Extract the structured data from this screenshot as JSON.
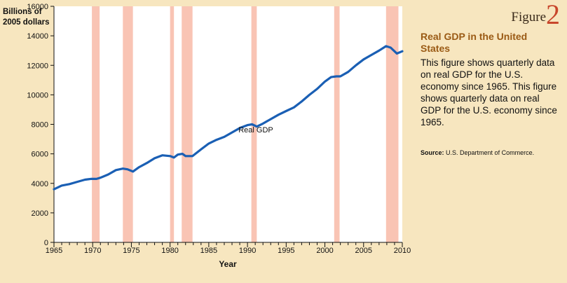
{
  "figure": {
    "word": "Figure",
    "number": "2"
  },
  "panel": {
    "title": "Real GDP in the United States",
    "description": "This figure shows quarterly data on real GDP for the U.S. economy since 1965. This figure shows quarterly data on real GDP for the U.S. economy since 1965.",
    "source_label": "Source:",
    "source_text": "U.S. Department of Commerce."
  },
  "colors": {
    "background": "#f7e6bf",
    "plot_bg": "#ffffff",
    "line": "#1a5fb4",
    "recession": "#f9c4b4",
    "title": "#9a5a14",
    "figure_number": "#c8462b"
  },
  "chart_data": {
    "type": "line",
    "ylabel_lines": [
      "Billions of",
      "2005 dollars"
    ],
    "xlabel": "Year",
    "xlim": [
      1965,
      2010
    ],
    "ylim": [
      0,
      16000
    ],
    "x_ticks": [
      1965,
      1970,
      1975,
      1980,
      1985,
      1990,
      1995,
      2000,
      2005,
      2010
    ],
    "y_ticks": [
      0,
      2000,
      4000,
      6000,
      8000,
      10000,
      12000,
      14000,
      16000
    ],
    "series": [
      {
        "name": "Real GDP",
        "x": [
          1965,
          1966,
          1967,
          1968,
          1969,
          1969.75,
          1970.5,
          1971,
          1972,
          1973,
          1973.9,
          1974.5,
          1975.2,
          1976,
          1977,
          1978,
          1979,
          1980,
          1980.5,
          1981,
          1981.6,
          1982,
          1982.9,
          1984,
          1985,
          1986,
          1987,
          1988,
          1989,
          1990,
          1990.6,
          1991.2,
          1992,
          1993,
          1994,
          1995,
          1996,
          1997,
          1998,
          1999,
          2000,
          2000.8,
          2001.5,
          2002,
          2003,
          2004,
          2005,
          2006,
          2007,
          2007.9,
          2008.5,
          2009.3,
          2010
        ],
        "y": [
          3600,
          3850,
          3950,
          4100,
          4250,
          4300,
          4300,
          4380,
          4600,
          4900,
          5000,
          4950,
          4800,
          5100,
          5380,
          5700,
          5900,
          5850,
          5750,
          5950,
          6000,
          5850,
          5850,
          6300,
          6700,
          6950,
          7150,
          7450,
          7750,
          7950,
          8000,
          7850,
          8050,
          8350,
          8650,
          8900,
          9150,
          9550,
          10000,
          10400,
          10900,
          11200,
          11250,
          11250,
          11550,
          12000,
          12400,
          12700,
          13000,
          13300,
          13200,
          12800,
          12950
        ]
      }
    ],
    "annotations": [
      {
        "text": "Real GDP",
        "x": 1990,
        "y": 8600
      }
    ],
    "recessions": [
      [
        1969.9,
        1970.9
      ],
      [
        1973.9,
        1975.2
      ],
      [
        1980.0,
        1980.5
      ],
      [
        1981.5,
        1982.9
      ],
      [
        1990.5,
        1991.2
      ],
      [
        2001.2,
        2001.9
      ],
      [
        2007.9,
        2009.5
      ]
    ],
    "legend": "none",
    "grid": false
  }
}
